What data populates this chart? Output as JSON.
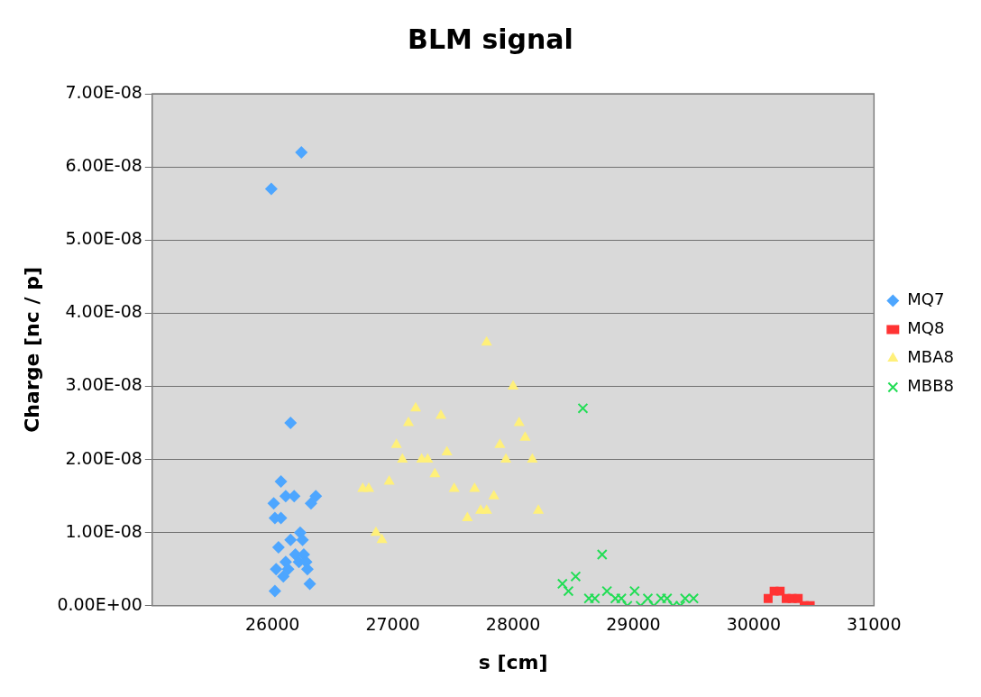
{
  "chart_data": {
    "type": "scatter",
    "title": "BLM signal",
    "xlabel": "s [cm]",
    "ylabel": "Charge [nc / p]",
    "xlim": [
      25000,
      31000
    ],
    "xticks": [
      26000,
      27000,
      28000,
      29000,
      30000,
      31000
    ],
    "ylim": [
      0,
      7e-08
    ],
    "yticks": [
      {
        "value": 0,
        "label": "0.00E+00"
      },
      {
        "value": 1e-08,
        "label": "1.00E-08"
      },
      {
        "value": 2e-08,
        "label": "2.00E-08"
      },
      {
        "value": 3e-08,
        "label": "3.00E-08"
      },
      {
        "value": 4e-08,
        "label": "4.00E-08"
      },
      {
        "value": 5e-08,
        "label": "5.00E-08"
      },
      {
        "value": 6e-08,
        "label": "6.00E-08"
      },
      {
        "value": 7e-08,
        "label": "7.00E-08"
      }
    ],
    "grid": "y",
    "legend": "right",
    "series": [
      {
        "name": "MQ7",
        "color": "#4da6ff",
        "marker": "diamond",
        "x": [
          26240,
          25990,
          26150,
          26070,
          26110,
          26180,
          26010,
          26020,
          26070,
          26320,
          26360,
          26230,
          26150,
          26250,
          26050,
          26190,
          26260,
          26220,
          26110,
          26280,
          26030,
          26130,
          26290,
          26090,
          26310,
          26020
        ],
        "values": [
          6.2e-08,
          5.7e-08,
          2.5e-08,
          1.7e-08,
          1.5e-08,
          1.5e-08,
          1.4e-08,
          1.2e-08,
          1.2e-08,
          1.4e-08,
          1.5e-08,
          1e-08,
          9e-09,
          9e-09,
          8e-09,
          7e-09,
          7e-09,
          6e-09,
          6e-09,
          6e-09,
          5e-09,
          5e-09,
          5e-09,
          4e-09,
          3e-09,
          2e-09
        ]
      },
      {
        "name": "MQ8",
        "color": "#ff3333",
        "marker": "square",
        "x": [
          30120,
          30170,
          30220,
          30270,
          30320,
          30370,
          30420,
          30470
        ],
        "values": [
          1e-09,
          2e-09,
          2e-09,
          1e-09,
          1e-09,
          1e-09,
          0,
          0
        ]
      },
      {
        "name": "MBA8",
        "color": "#fff07a",
        "marker": "triangle",
        "x": [
          27780,
          28000,
          27190,
          27400,
          27130,
          28050,
          28100,
          27030,
          27450,
          27890,
          27290,
          27080,
          27240,
          27940,
          28160,
          27350,
          26970,
          26750,
          26800,
          27510,
          27680,
          27840,
          27730,
          27780,
          28210,
          27620,
          26860,
          26910
        ],
        "values": [
          3.6e-08,
          3e-08,
          2.7e-08,
          2.6e-08,
          2.5e-08,
          2.5e-08,
          2.3e-08,
          2.2e-08,
          2.1e-08,
          2.2e-08,
          2e-08,
          2e-08,
          2e-08,
          2e-08,
          2e-08,
          1.8e-08,
          1.7e-08,
          1.6e-08,
          1.6e-08,
          1.6e-08,
          1.6e-08,
          1.5e-08,
          1.3e-08,
          1.3e-08,
          1.3e-08,
          1.2e-08,
          1e-08,
          9e-09
        ]
      },
      {
        "name": "MBB8",
        "color": "#22dd55",
        "marker": "cross",
        "x": [
          28580,
          28740,
          28410,
          28520,
          28460,
          28630,
          28680,
          28780,
          29010,
          28850,
          28900,
          28950,
          29060,
          29120,
          29170,
          29230,
          29280,
          29330,
          29390,
          29430,
          29500
        ],
        "values": [
          2.7e-08,
          7e-09,
          3e-09,
          4e-09,
          2e-09,
          1e-09,
          1e-09,
          2e-09,
          2e-09,
          1e-09,
          1e-09,
          0,
          0,
          1e-09,
          0,
          1e-09,
          1e-09,
          0,
          0,
          1e-09,
          1e-09
        ]
      }
    ]
  }
}
